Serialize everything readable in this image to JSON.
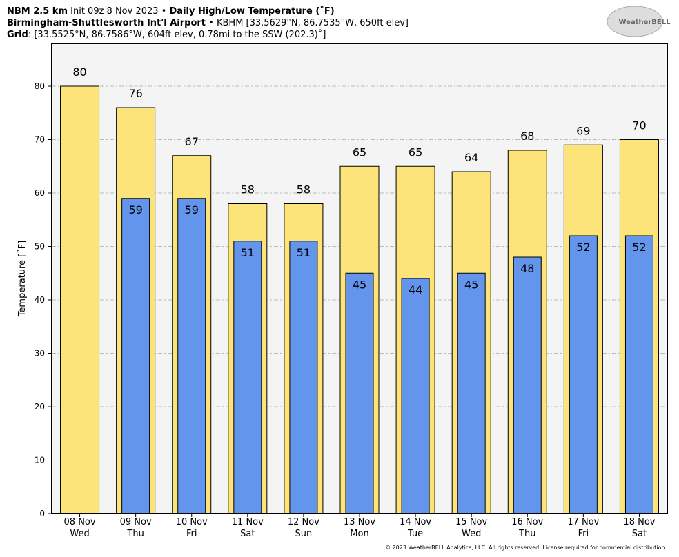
{
  "chart_data": {
    "type": "bar",
    "title": {
      "model": "NBM 2.5 km",
      "init": "Init 09z 8 Nov 2023 •",
      "product": "Daily High/Low Temperature (˚F)"
    },
    "station": {
      "name": "Birmingham-Shuttlesworth Int'l Airport",
      "detail": "• KBHM [33.5629°N, 86.7535°W, 650ft elev]"
    },
    "grid_info": {
      "label": "Grid",
      "detail": ": [33.5525°N, 86.7586°W, 604ft elev, 0.78mi to the SSW (202.3)˚]"
    },
    "logo": "WeatherBELL",
    "footer": "© 2023 WeatherBELL Analytics, LLC. All rights reserved. License required for commercial distribution.",
    "y_label": "Temperature [˚F]",
    "categories": [
      [
        "08 Nov",
        "Wed"
      ],
      [
        "09 Nov",
        "Thu"
      ],
      [
        "10 Nov",
        "Fri"
      ],
      [
        "11 Nov",
        "Sat"
      ],
      [
        "12 Nov",
        "Sun"
      ],
      [
        "13 Nov",
        "Mon"
      ],
      [
        "14 Nov",
        "Tue"
      ],
      [
        "15 Nov",
        "Wed"
      ],
      [
        "16 Nov",
        "Thu"
      ],
      [
        "17 Nov",
        "Fri"
      ],
      [
        "18 Nov",
        "Sat"
      ]
    ],
    "series": [
      {
        "color": "#fde47a",
        "values": [
          80,
          76,
          67,
          58,
          58,
          65,
          65,
          64,
          68,
          69,
          70
        ]
      },
      {
        "color": "#6495ed",
        "values": [
          null,
          59,
          59,
          51,
          51,
          45,
          44,
          45,
          48,
          52,
          52
        ]
      }
    ],
    "ylim": [
      0,
      88
    ],
    "yticks": [
      0,
      10,
      20,
      30,
      40,
      50,
      60,
      70,
      80
    ],
    "grid": true
  }
}
